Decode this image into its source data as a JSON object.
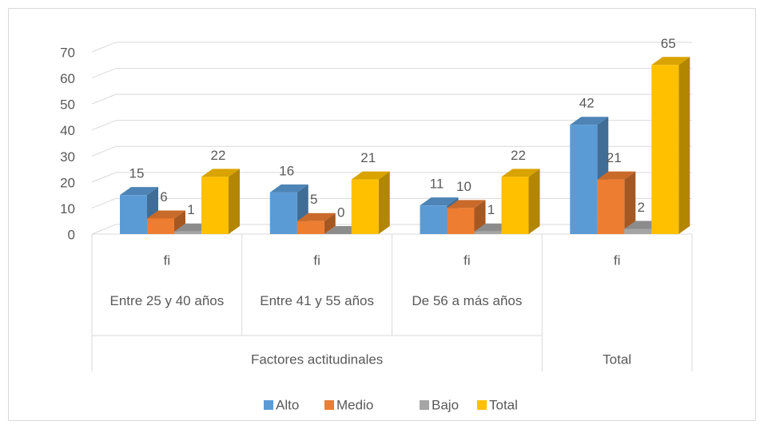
{
  "chart_data": {
    "type": "bar3d",
    "categories": [
      "fi",
      "fi",
      "fi",
      "fi"
    ],
    "subcategories": [
      "Entre 25 y 40 años",
      "Entre 41 y 55 años",
      "De 56 a más años",
      null
    ],
    "groups": [
      {
        "label": "Factores actitudinales",
        "span": 3
      },
      {
        "label": "Total",
        "span": 1
      }
    ],
    "series": [
      {
        "name": "Alto",
        "color": "#5b9bd5",
        "values": [
          15,
          16,
          11,
          42
        ]
      },
      {
        "name": "Medio",
        "color": "#ed7d31",
        "values": [
          6,
          5,
          10,
          21
        ]
      },
      {
        "name": "Bajo",
        "color": "#a5a5a5",
        "values": [
          1,
          0,
          1,
          2
        ]
      },
      {
        "name": "Total",
        "color": "#ffc000",
        "values": [
          22,
          21,
          22,
          65
        ]
      }
    ],
    "ylim": [
      0,
      70
    ],
    "yticks": [
      0,
      10,
      20,
      30,
      40,
      50,
      60,
      70
    ],
    "grid": true,
    "legend": "bottom"
  }
}
